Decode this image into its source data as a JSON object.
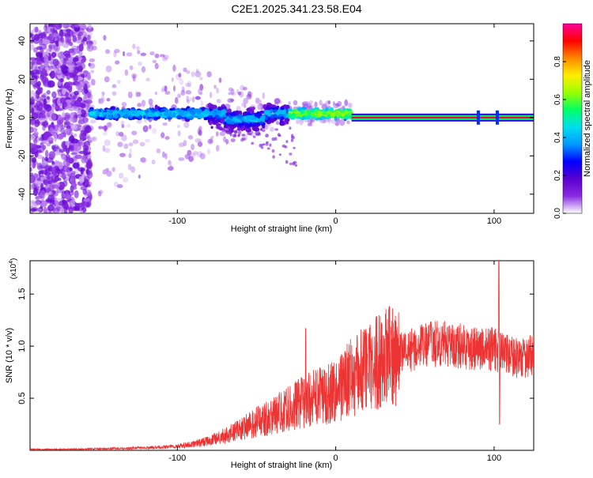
{
  "title": "C2E1.2025.341.23.58.E04",
  "colors": {
    "snr_line": "#ee3333",
    "axis": "#000000",
    "colormap": [
      "#ffffff",
      "#8a2be2",
      "#5a00d0",
      "#0000ff",
      "#0099ff",
      "#00ddee",
      "#00ff66",
      "#99ff00",
      "#ffee00",
      "#ff8800",
      "#ff0000",
      "#ff0099"
    ]
  },
  "chart_data": [
    {
      "type": "heatmap",
      "title": "C2E1.2025.341.23.58.E04",
      "xlabel": "Height of straight line (km)",
      "ylabel": "Frequency (Hz)",
      "xlim": [
        -193,
        125
      ],
      "ylim": [
        -50,
        49
      ],
      "xticks": [
        -100,
        0,
        100
      ],
      "xtick_labels": [
        "-100",
        "0",
        "100"
      ],
      "yticks": [
        -40,
        -20,
        0,
        20,
        40
      ],
      "ytick_labels": [
        "-40",
        "-20",
        "0",
        "20",
        "40"
      ],
      "colorbar": {
        "label": "Normalized spectral amplitude",
        "range": [
          0,
          1
        ],
        "ticks": [
          0.0,
          0.2,
          0.4,
          0.6,
          0.8
        ],
        "tick_labels": [
          "0.0",
          "0.2",
          "0.4",
          "0.6",
          "0.8"
        ]
      },
      "features": [
        {
          "name": "diffuse noise",
          "x_range": [
            -193,
            -155
          ],
          "freq_range": [
            -50,
            49
          ],
          "amplitude": 0.1
        },
        {
          "name": "signal band",
          "x_range": [
            -155,
            10
          ],
          "center_freq": 2,
          "amplitude": 0.3
        },
        {
          "name": "narrow line",
          "x_range": [
            10,
            125
          ],
          "center_freq": 0,
          "amplitude": 0.95
        }
      ]
    },
    {
      "type": "line",
      "xlabel": "Height of straight line (km)",
      "ylabel": "SNR (10 * v/v)",
      "multiplier_label": "(x10",
      "multiplier_exp": "4",
      "xlim": [
        -193,
        125
      ],
      "ylim": [
        0,
        1.82
      ],
      "xticks": [
        -100,
        0,
        100
      ],
      "xtick_labels": [
        "-100",
        "0",
        "100"
      ],
      "yticks": [
        0.5,
        1.0,
        1.5
      ],
      "ytick_labels": [
        "0.5",
        "1.0",
        "1.5"
      ],
      "series": [
        {
          "x": [
            -193,
            -170,
            -150,
            -130,
            -110,
            -100,
            -90,
            -80,
            -70,
            -60,
            -50,
            -40,
            -30,
            -20,
            -10,
            0,
            10,
            20,
            30,
            40,
            50,
            60,
            70,
            80,
            90,
            100,
            110,
            120,
            125
          ],
          "y": [
            0.01,
            0.01,
            0.015,
            0.02,
            0.03,
            0.04,
            0.06,
            0.09,
            0.14,
            0.2,
            0.27,
            0.33,
            0.4,
            0.47,
            0.52,
            0.58,
            0.7,
            0.8,
            0.88,
            0.93,
            0.98,
            1.02,
            1.02,
            1.0,
            0.98,
            0.97,
            0.9,
            0.88,
            0.93
          ]
        }
      ],
      "spikes": [
        {
          "x": -19,
          "y": 1.17
        },
        {
          "x": 103,
          "y": 1.82
        },
        {
          "x": 103.5,
          "y": 0.25
        }
      ]
    }
  ]
}
